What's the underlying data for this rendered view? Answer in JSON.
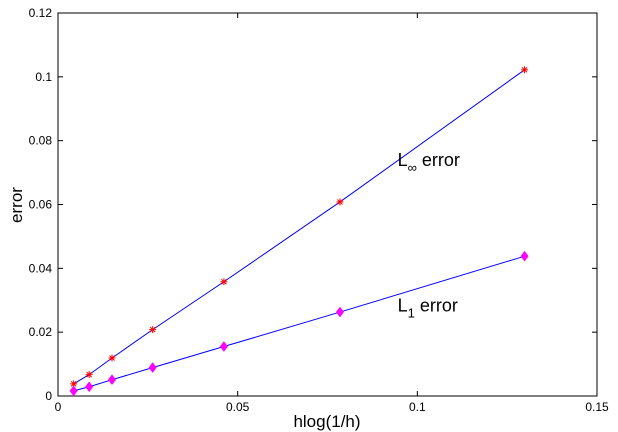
{
  "chart_data": {
    "type": "line",
    "xlabel": "hlog(1/h)",
    "ylabel": "error",
    "xlim": [
      0,
      0.15
    ],
    "ylim": [
      0,
      0.12
    ],
    "xticks": [
      0,
      0.05,
      0.1,
      0.15
    ],
    "xtick_labels": [
      "0",
      "0.05",
      "0.1",
      "0.15"
    ],
    "yticks": [
      0,
      0.02,
      0.04,
      0.06,
      0.08,
      0.1,
      0.12
    ],
    "ytick_labels": [
      "0",
      "0.02",
      "0.04",
      "0.06",
      "0.08",
      "0.1",
      "0.12"
    ],
    "grid": false,
    "series": [
      {
        "label_main": "L",
        "label_sub": "∞",
        "label_tail": " error",
        "line_color": "#0000ff",
        "marker": "star",
        "marker_color": "#ff0000",
        "x": [
          0.00435,
          0.00868,
          0.01503,
          0.02634,
          0.04617,
          0.07847,
          0.12984
        ],
        "y": [
          0.0038,
          0.0067,
          0.0119,
          0.0208,
          0.0358,
          0.0608,
          0.1022
        ],
        "label_pos": [
          0.0945,
          0.072
        ]
      },
      {
        "label_main": "L",
        "label_sub": "1",
        "label_tail": " error",
        "line_color": "#0000ff",
        "marker": "diamond",
        "marker_color": "#ff00ff",
        "x": [
          0.00435,
          0.00868,
          0.01503,
          0.02634,
          0.04617,
          0.07847,
          0.12984
        ],
        "y": [
          0.0016,
          0.0029,
          0.0051,
          0.0089,
          0.0155,
          0.0263,
          0.0438
        ],
        "label_pos": [
          0.0945,
          0.0265
        ]
      }
    ]
  }
}
